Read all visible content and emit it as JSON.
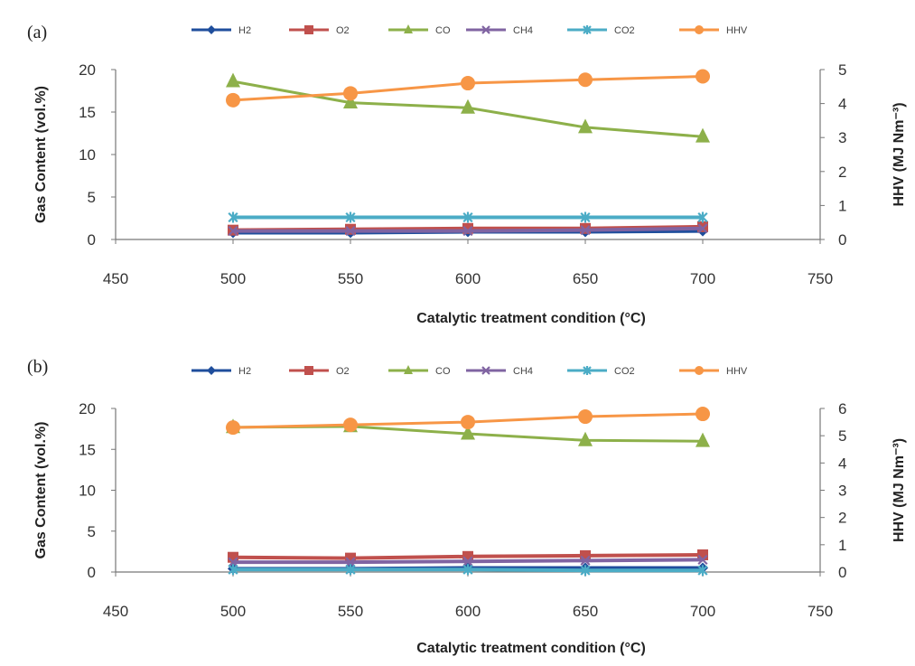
{
  "figure": {
    "panels": [
      "(a)",
      "(b)"
    ]
  },
  "chart_data": [
    {
      "panel": "(a)",
      "type": "line",
      "xlabel": "Catalytic treatment condition (°C)",
      "ylabel": "Gas Content (vol.%)",
      "y2label": "HHV (MJ Nm⁻³)",
      "x_ticks": [
        450,
        500,
        550,
        600,
        650,
        700,
        750
      ],
      "y_ticks": [
        0,
        5,
        10,
        15,
        20
      ],
      "y2_ticks": [
        0,
        1,
        2,
        3,
        4,
        5
      ],
      "xlim": [
        450,
        750
      ],
      "ylim": [
        0,
        20
      ],
      "y2lim": [
        0,
        5
      ],
      "legend_position": "top",
      "x": [
        500,
        550,
        600,
        650,
        700
      ],
      "series": [
        {
          "name": "H2",
          "axis": "left",
          "color": "#1f4e9c",
          "marker": "diamond",
          "values": [
            0.8,
            0.8,
            0.9,
            0.9,
            1.0
          ]
        },
        {
          "name": "O2",
          "axis": "left",
          "color": "#c0504d",
          "marker": "square",
          "values": [
            1.1,
            1.2,
            1.3,
            1.3,
            1.5
          ]
        },
        {
          "name": "CO",
          "axis": "left",
          "color": "#8db04a",
          "marker": "triangle",
          "values": [
            18.6,
            16.1,
            15.5,
            13.2,
            12.1
          ]
        },
        {
          "name": "CH4",
          "axis": "left",
          "color": "#8064a2",
          "marker": "x",
          "values": [
            1.0,
            1.0,
            1.0,
            1.1,
            1.3
          ]
        },
        {
          "name": "CO2",
          "axis": "left",
          "color": "#4bacc6",
          "marker": "star",
          "values": [
            2.6,
            2.6,
            2.6,
            2.6,
            2.6
          ]
        },
        {
          "name": "HHV",
          "axis": "right",
          "color": "#f79646",
          "marker": "circle",
          "values": [
            4.1,
            4.3,
            4.6,
            4.7,
            4.8
          ]
        }
      ]
    },
    {
      "panel": "(b)",
      "type": "line",
      "xlabel": "Catalytic treatment condition (°C)",
      "ylabel": "Gas Content (vol.%)",
      "y2label": "HHV (MJ Nm⁻³)",
      "x_ticks": [
        450,
        500,
        550,
        600,
        650,
        700,
        750
      ],
      "y_ticks": [
        0,
        5,
        10,
        15,
        20
      ],
      "y2_ticks": [
        0,
        1,
        2,
        3,
        4,
        5,
        6
      ],
      "xlim": [
        450,
        750
      ],
      "ylim": [
        0,
        20
      ],
      "y2lim": [
        0,
        6
      ],
      "legend_position": "top",
      "x": [
        500,
        550,
        600,
        650,
        700
      ],
      "series": [
        {
          "name": "H2",
          "axis": "left",
          "color": "#1f4e9c",
          "marker": "diamond",
          "values": [
            0.4,
            0.4,
            0.5,
            0.5,
            0.5
          ]
        },
        {
          "name": "O2",
          "axis": "left",
          "color": "#c0504d",
          "marker": "square",
          "values": [
            1.8,
            1.7,
            1.9,
            2.0,
            2.1
          ]
        },
        {
          "name": "CO",
          "axis": "left",
          "color": "#8db04a",
          "marker": "triangle",
          "values": [
            17.7,
            17.8,
            16.9,
            16.1,
            16.0
          ]
        },
        {
          "name": "CH4",
          "axis": "left",
          "color": "#8064a2",
          "marker": "x",
          "values": [
            1.2,
            1.2,
            1.3,
            1.4,
            1.5
          ]
        },
        {
          "name": "CO2",
          "axis": "left",
          "color": "#4bacc6",
          "marker": "star",
          "values": [
            0.3,
            0.3,
            0.3,
            0.2,
            0.2
          ]
        },
        {
          "name": "HHV",
          "axis": "right",
          "color": "#f79646",
          "marker": "circle",
          "values": [
            5.3,
            5.4,
            5.5,
            5.7,
            5.8
          ]
        }
      ]
    }
  ]
}
